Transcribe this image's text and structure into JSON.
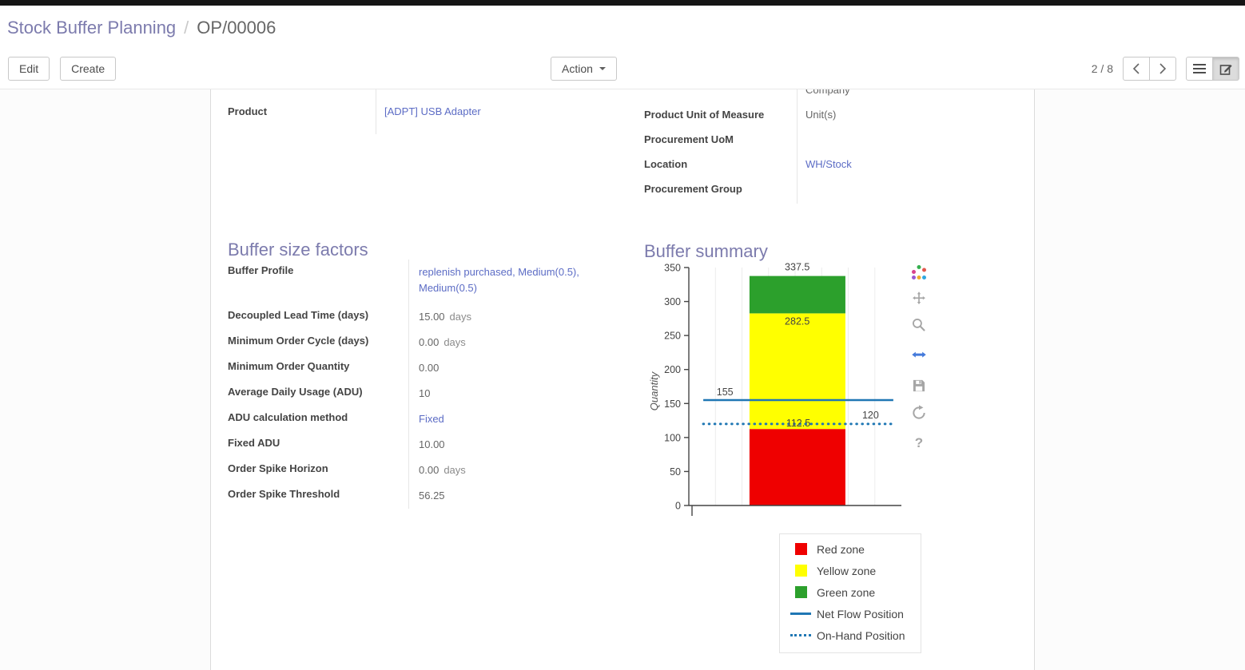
{
  "colors": {
    "topbar": "#151515",
    "accent": "#7c7bad",
    "link": "#5c6cc5",
    "label": "#444444",
    "value": "#666666",
    "suffix": "#8b8b8b"
  },
  "breadcrumb": {
    "parent": "Stock Buffer Planning",
    "separator": "/",
    "current": "OP/00006"
  },
  "controls": {
    "edit": "Edit",
    "create": "Create",
    "action": "Action",
    "pager": "2 / 8"
  },
  "form": {
    "product": {
      "label": "Product",
      "value": "[ADPT] USB Adapter"
    },
    "clipped_top_text": "Company",
    "right_fields": [
      {
        "label": "Product Unit of Measure",
        "value": "Unit(s)",
        "link": false
      },
      {
        "label": "Procurement UoM",
        "value": "",
        "link": false
      },
      {
        "label": "Location",
        "value": "WH/Stock",
        "link": true
      },
      {
        "label": "Procurement Group",
        "value": "",
        "link": false
      }
    ],
    "sections": {
      "factors_title": "Buffer size factors",
      "summary_title": "Buffer summary"
    },
    "factors": [
      {
        "label": "Buffer Profile",
        "value": "replenish purchased, Medium(0.5), Medium(0.5)",
        "suffix": "",
        "link": true
      },
      {
        "label": "Decoupled Lead Time (days)",
        "value": "15.00",
        "suffix": "days",
        "link": false
      },
      {
        "label": "Minimum Order Cycle (days)",
        "value": "0.00",
        "suffix": "days",
        "link": false
      },
      {
        "label": "Minimum Order Quantity",
        "value": "0.00",
        "suffix": "",
        "link": false
      },
      {
        "label": "Average Daily Usage (ADU)",
        "value": "10",
        "suffix": "",
        "link": false
      },
      {
        "label": "ADU calculation method",
        "value": "Fixed",
        "suffix": "",
        "link": true
      },
      {
        "label": "Fixed ADU",
        "value": "10.00",
        "suffix": "",
        "link": false
      },
      {
        "label": "Order Spike Horizon",
        "value": "0.00",
        "suffix": "days",
        "link": false
      },
      {
        "label": "Order Spike Threshold",
        "value": "56.25",
        "suffix": "",
        "link": false
      }
    ]
  },
  "chart_data": {
    "type": "bar",
    "title": "",
    "ylabel": "Quantity",
    "ylim": [
      0,
      350
    ],
    "yticks": [
      0,
      50,
      100,
      150,
      200,
      250,
      300,
      350
    ],
    "grid": "vertical-light",
    "zones": [
      {
        "name": "Red zone",
        "from": 0,
        "to": 112.5,
        "color": "#ef0000"
      },
      {
        "name": "Yellow zone",
        "from": 112.5,
        "to": 282.5,
        "color": "#ffff00"
      },
      {
        "name": "Green zone",
        "from": 282.5,
        "to": 337.5,
        "color": "#2ca02c"
      }
    ],
    "lines": [
      {
        "name": "Net Flow Position",
        "value": 155,
        "style": "solid",
        "color": "#1f77b4"
      },
      {
        "name": "On-Hand Position",
        "value": 120,
        "style": "dotted",
        "color": "#1f77b4"
      }
    ],
    "annotations": [
      {
        "text": "337.5",
        "v": 337.5,
        "xf": 0.51,
        "dy": -7
      },
      {
        "text": "282.5",
        "v": 282.5,
        "xf": 0.51,
        "dy": 14
      },
      {
        "text": "155",
        "v": 155,
        "xf": 0.17,
        "dy": -6
      },
      {
        "text": "112.5",
        "v": 112.5,
        "xf": 0.515,
        "dy": -3
      },
      {
        "text": "120",
        "v": 120,
        "xf": 0.855,
        "dy": -7
      }
    ],
    "legend": {
      "position": "bottom-right",
      "items": [
        "Red zone",
        "Yellow zone",
        "Green zone",
        "Net Flow Position",
        "On-Hand Position"
      ]
    }
  },
  "modebar": {
    "icons": [
      "plotly-logo",
      "pan",
      "zoom",
      "autoscale",
      "save",
      "reset-axes",
      "help"
    ],
    "help_glyph": "?"
  }
}
